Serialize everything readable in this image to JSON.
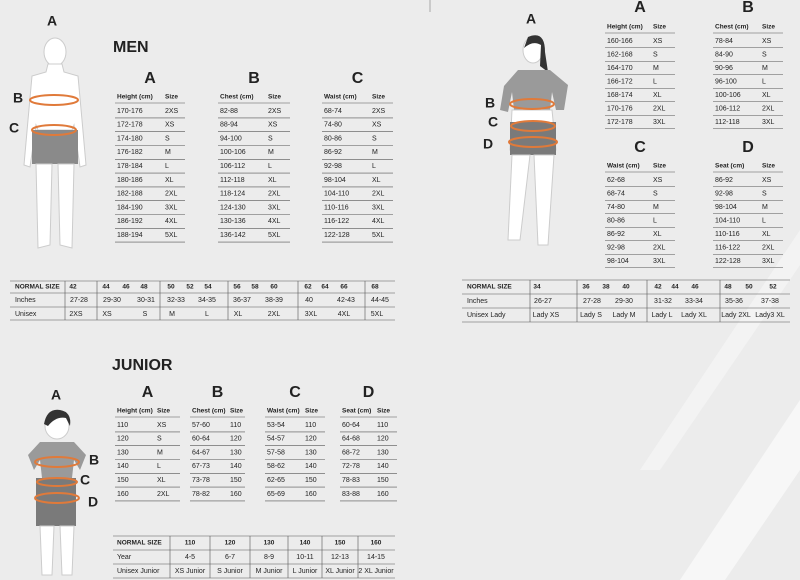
{
  "men": {
    "title": "MEN",
    "figure_labels": [
      "A",
      "B",
      "C"
    ],
    "tables": [
      {
        "letter": "A",
        "headers": [
          "Height (cm)",
          "Size"
        ],
        "rows": [
          [
            "170-176",
            "2XS"
          ],
          [
            "172-178",
            "XS"
          ],
          [
            "174-180",
            "S"
          ],
          [
            "176-182",
            "M"
          ],
          [
            "178-184",
            "L"
          ],
          [
            "180-186",
            "XL"
          ],
          [
            "182-188",
            "2XL"
          ],
          [
            "184-190",
            "3XL"
          ],
          [
            "186-192",
            "4XL"
          ],
          [
            "188-194",
            "5XL"
          ]
        ]
      },
      {
        "letter": "B",
        "headers": [
          "Chest (cm)",
          "Size"
        ],
        "rows": [
          [
            "82-88",
            "2XS"
          ],
          [
            "88-94",
            "XS"
          ],
          [
            "94-100",
            "S"
          ],
          [
            "100-106",
            "M"
          ],
          [
            "106-112",
            "L"
          ],
          [
            "112-118",
            "XL"
          ],
          [
            "118-124",
            "2XL"
          ],
          [
            "124-130",
            "3XL"
          ],
          [
            "130-136",
            "4XL"
          ],
          [
            "136-142",
            "5XL"
          ]
        ]
      },
      {
        "letter": "C",
        "headers": [
          "Waist (cm)",
          "Size"
        ],
        "rows": [
          [
            "68-74",
            "2XS"
          ],
          [
            "74-80",
            "XS"
          ],
          [
            "80-86",
            "S"
          ],
          [
            "86-92",
            "M"
          ],
          [
            "92-98",
            "L"
          ],
          [
            "98-104",
            "XL"
          ],
          [
            "104-110",
            "2XL"
          ],
          [
            "110-116",
            "3XL"
          ],
          [
            "116-122",
            "4XL"
          ],
          [
            "122-128",
            "5XL"
          ]
        ]
      }
    ],
    "normal_size": [
      [
        "NORMAL SIZE",
        "42",
        "44",
        "46",
        "48",
        "50",
        "52",
        "54",
        "56",
        "58",
        "60",
        "62",
        "64",
        "66",
        "68"
      ],
      [
        "Inches",
        "27-28",
        "29-30",
        "30-31",
        "32-33",
        "34-35",
        "36-37",
        "38-39",
        "40",
        "42-43",
        "44-45"
      ],
      [
        "Unisex",
        "2XS",
        "XS",
        "S",
        "M",
        "L",
        "XL",
        "2XL",
        "3XL",
        "4XL",
        "5XL"
      ]
    ]
  },
  "women": {
    "figure_labels": [
      "A",
      "B",
      "C",
      "D"
    ],
    "tables": [
      {
        "letter": "A",
        "headers": [
          "Height (cm)",
          "Size"
        ],
        "rows": [
          [
            "160-166",
            "XS"
          ],
          [
            "162-168",
            "S"
          ],
          [
            "164-170",
            "M"
          ],
          [
            "166-172",
            "L"
          ],
          [
            "168-174",
            "XL"
          ],
          [
            "170-176",
            "2XL"
          ],
          [
            "172-178",
            "3XL"
          ]
        ]
      },
      {
        "letter": "B",
        "headers": [
          "Chest (cm)",
          "Size"
        ],
        "rows": [
          [
            "78-84",
            "XS"
          ],
          [
            "84-90",
            "S"
          ],
          [
            "90-96",
            "M"
          ],
          [
            "96-100",
            "L"
          ],
          [
            "100-106",
            "XL"
          ],
          [
            "106-112",
            "2XL"
          ],
          [
            "112-118",
            "3XL"
          ]
        ]
      },
      {
        "letter": "C",
        "headers": [
          "Waist (cm)",
          "Size"
        ],
        "rows": [
          [
            "62-68",
            "XS"
          ],
          [
            "68-74",
            "S"
          ],
          [
            "74-80",
            "M"
          ],
          [
            "80-86",
            "L"
          ],
          [
            "86-92",
            "XL"
          ],
          [
            "92-98",
            "2XL"
          ],
          [
            "98-104",
            "3XL"
          ]
        ]
      },
      {
        "letter": "D",
        "headers": [
          "Seat (cm)",
          "Size"
        ],
        "rows": [
          [
            "86-92",
            "XS"
          ],
          [
            "92-98",
            "S"
          ],
          [
            "98-104",
            "M"
          ],
          [
            "104-110",
            "L"
          ],
          [
            "110-116",
            "XL"
          ],
          [
            "116-122",
            "2XL"
          ],
          [
            "122-128",
            "3XL"
          ]
        ]
      }
    ],
    "normal_size": [
      [
        "NORMAL SIZE",
        "34",
        "36",
        "38",
        "40",
        "42",
        "44",
        "46",
        "48",
        "50",
        "52"
      ],
      [
        "Inches",
        "26-27",
        "27-28",
        "29-30",
        "31-32",
        "33-34",
        "35-36",
        "37-38"
      ],
      [
        "Unisex Lady",
        "Lady XS",
        "Lady S",
        "Lady M",
        "Lady L",
        "Lady XL",
        "Lady 2XL",
        "Lady3 XL"
      ]
    ]
  },
  "junior": {
    "title": "JUNIOR",
    "figure_labels": [
      "A",
      "B",
      "C",
      "D"
    ],
    "tables": [
      {
        "letter": "A",
        "headers": [
          "Height (cm)",
          "Size"
        ],
        "rows": [
          [
            "110",
            "XS"
          ],
          [
            "120",
            "S"
          ],
          [
            "130",
            "M"
          ],
          [
            "140",
            "L"
          ],
          [
            "150",
            "XL"
          ],
          [
            "160",
            "2XL"
          ]
        ]
      },
      {
        "letter": "B",
        "headers": [
          "Chest (cm)",
          "Size"
        ],
        "rows": [
          [
            "57-60",
            "110"
          ],
          [
            "60-64",
            "120"
          ],
          [
            "64-67",
            "130"
          ],
          [
            "67-73",
            "140"
          ],
          [
            "73-78",
            "150"
          ],
          [
            "78-82",
            "160"
          ]
        ]
      },
      {
        "letter": "C",
        "headers": [
          "Waist (cm)",
          "Size"
        ],
        "rows": [
          [
            "53-54",
            "110"
          ],
          [
            "54-57",
            "120"
          ],
          [
            "57-58",
            "130"
          ],
          [
            "58-62",
            "140"
          ],
          [
            "62-65",
            "150"
          ],
          [
            "65-69",
            "160"
          ]
        ]
      },
      {
        "letter": "D",
        "headers": [
          "Seat (cm)",
          "Size"
        ],
        "rows": [
          [
            "60-64",
            "110"
          ],
          [
            "64-68",
            "120"
          ],
          [
            "68-72",
            "130"
          ],
          [
            "72-78",
            "140"
          ],
          [
            "78-83",
            "150"
          ],
          [
            "83-88",
            "160"
          ]
        ]
      }
    ],
    "normal_size": [
      [
        "NORMAL SIZE",
        "110",
        "120",
        "130",
        "140",
        "150",
        "160"
      ],
      [
        "Year",
        "4-5",
        "6-7",
        "8-9",
        "10-11",
        "12-13",
        "14-15"
      ],
      [
        "Unisex Junior",
        "XS Junior",
        "S Junior",
        "M Junior",
        "L Junior",
        "XL Junior",
        "2 XL Junior"
      ]
    ]
  }
}
